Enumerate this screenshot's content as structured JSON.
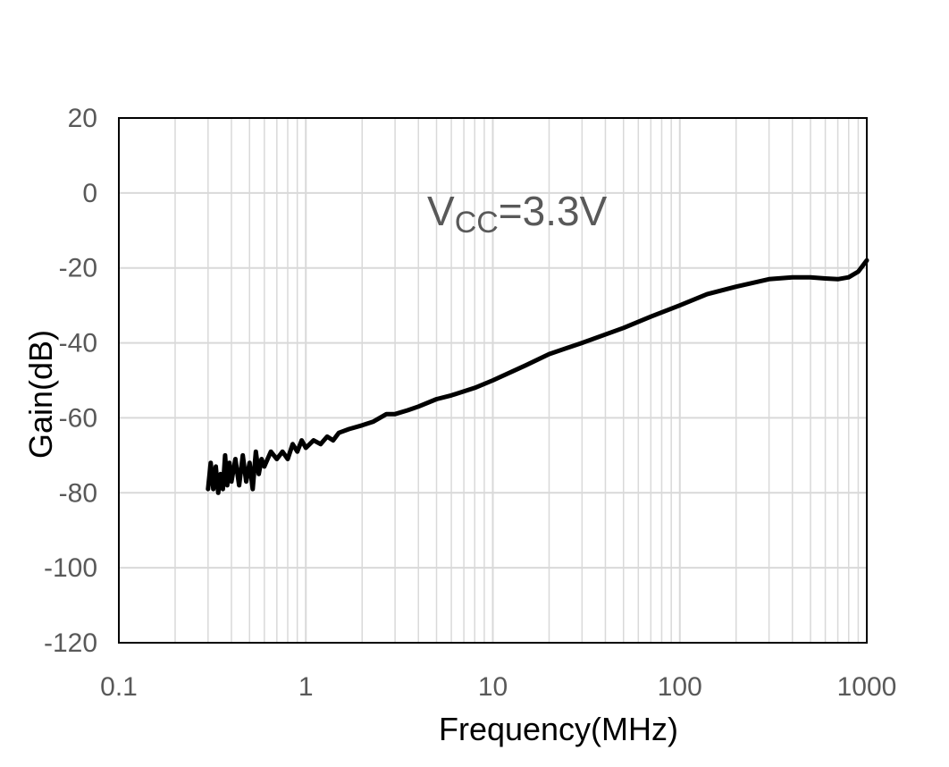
{
  "chart_data": {
    "type": "line",
    "title": "",
    "xlabel": "Frequency(MHz)",
    "ylabel": "Gain(dB)",
    "xscale": "log",
    "xlim": [
      0.1,
      1000
    ],
    "ylim": [
      -120,
      20
    ],
    "grid": true,
    "x_ticks": [
      0.1,
      1,
      10,
      100,
      1000
    ],
    "x_tick_labels": [
      "0.1",
      "1",
      "10",
      "100",
      "1000"
    ],
    "y_ticks": [
      20,
      0,
      -20,
      -40,
      -60,
      -80,
      -100,
      -120
    ],
    "y_tick_labels": [
      "20",
      "0",
      "-20",
      "-40",
      "-60",
      "-80",
      "-100",
      "-120"
    ],
    "annotation": {
      "main": "V",
      "sub": "CC",
      "rest": "=3.3V"
    },
    "line_color": "#000000",
    "grid_color": "#d9d9d9",
    "series": [
      {
        "name": "Gain",
        "x": [
          0.3,
          0.31,
          0.32,
          0.33,
          0.34,
          0.35,
          0.36,
          0.37,
          0.38,
          0.39,
          0.4,
          0.42,
          0.44,
          0.46,
          0.48,
          0.5,
          0.52,
          0.54,
          0.56,
          0.58,
          0.6,
          0.65,
          0.7,
          0.75,
          0.8,
          0.85,
          0.9,
          0.95,
          1.0,
          1.1,
          1.2,
          1.3,
          1.4,
          1.5,
          1.7,
          2.0,
          2.3,
          2.7,
          3.0,
          3.5,
          4.0,
          5.0,
          6.0,
          8.0,
          10,
          15,
          20,
          30,
          50,
          70,
          100,
          140,
          200,
          300,
          400,
          500,
          600,
          700,
          800,
          900,
          1000
        ],
        "values": [
          -79,
          -72,
          -79,
          -73,
          -80,
          -75,
          -79,
          -70,
          -78,
          -72,
          -77,
          -71,
          -78,
          -70,
          -77,
          -72,
          -79,
          -69,
          -75,
          -71,
          -73,
          -69,
          -71,
          -69,
          -71,
          -67,
          -69,
          -66,
          -68,
          -66,
          -67,
          -65,
          -66,
          -64,
          -63,
          -62,
          -61,
          -59,
          -59,
          -58,
          -57,
          -55,
          -54,
          -52,
          -50,
          -46,
          -43,
          -40,
          -36,
          -33,
          -30,
          -27,
          -25,
          -23,
          -22.5,
          -22.5,
          -22.8,
          -23,
          -22.5,
          -21,
          -18
        ]
      }
    ]
  }
}
